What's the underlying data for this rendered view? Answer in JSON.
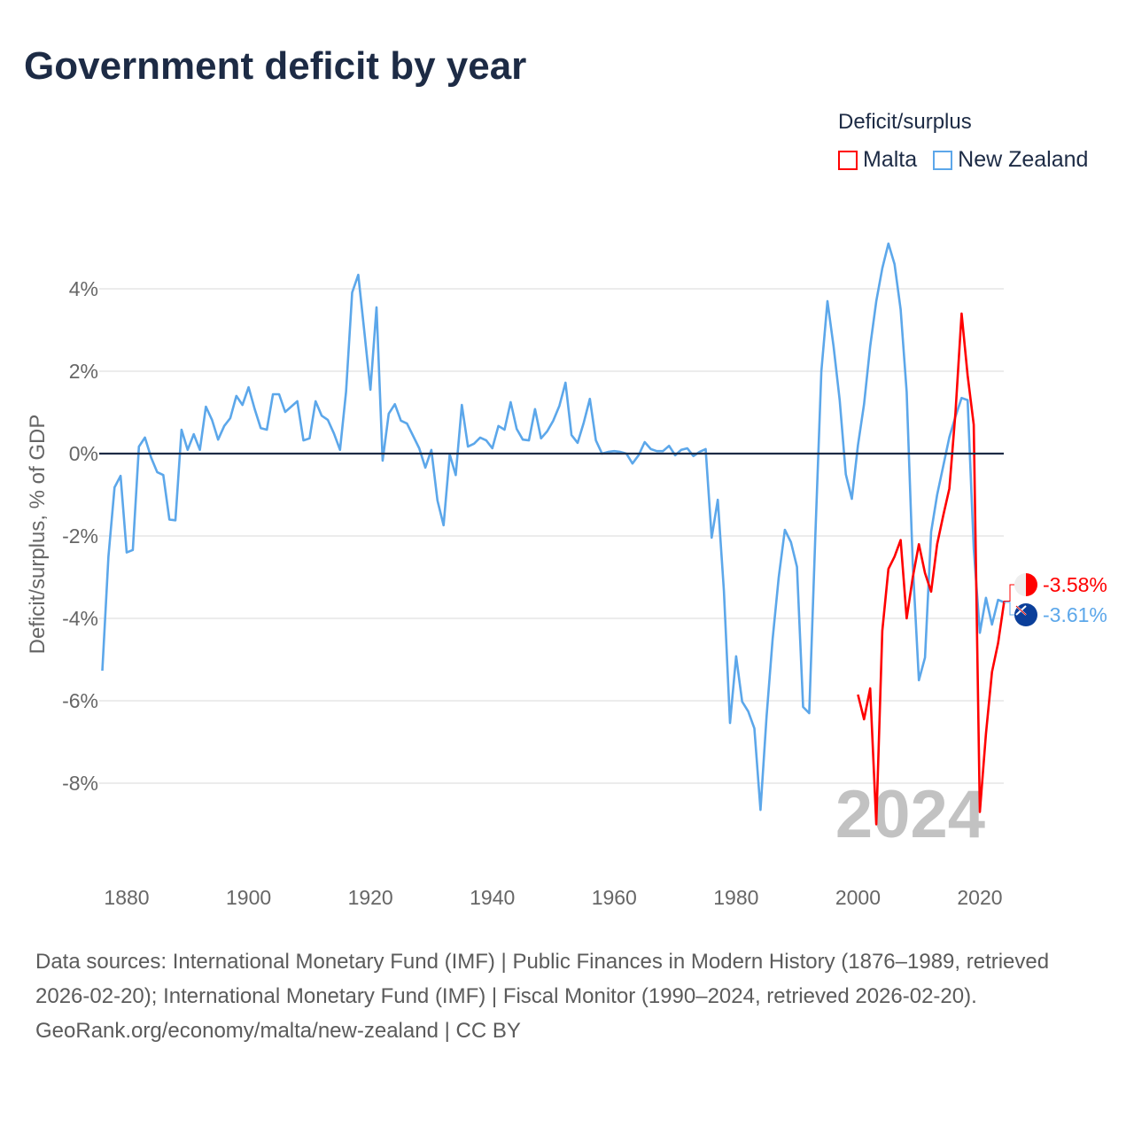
{
  "title": "Government deficit by year",
  "legend_title": "Deficit/surplus",
  "sources": "Data sources: International Monetary Fund (IMF) | Public Finances in Modern History (1876–1989, retrieved 2026-02-20); International Monetary Fund (IMF) | Fiscal Monitor (1990–2024, retrieved 2026-02-20).",
  "credit": "GeoRank.org/economy/malta/new-zealand | CC BY",
  "chart_data": {
    "type": "line",
    "title": "Government deficit by year",
    "xlabel": "",
    "ylabel": "Deficit/surplus, % of GDP",
    "xlim": [
      1876,
      2024
    ],
    "ylim": [
      -10,
      5.5
    ],
    "x_ticks": [
      1880,
      1900,
      1920,
      1940,
      1960,
      1980,
      2000,
      2020
    ],
    "y_ticks": [
      4,
      2,
      0,
      -2,
      -4,
      -6,
      -8
    ],
    "y_tick_labels": [
      "4%",
      "2%",
      "0%",
      "-2%",
      "-4%",
      "-6%",
      "-8%"
    ],
    "x_tick_labels": [
      "1880",
      "1900",
      "1920",
      "1940",
      "1960",
      "1980",
      "2000",
      "2020"
    ],
    "grid": true,
    "legend_placement": "top-right",
    "year_watermark": "2024",
    "series": [
      {
        "name": "Malta",
        "color": "#ff0000",
        "end_label": "-3.58%",
        "start_year": 2000,
        "values": [
          -5.85,
          -6.45,
          -5.7,
          -9.0,
          -4.3,
          -2.8,
          -2.5,
          -2.1,
          -4.0,
          -3.0,
          -2.2,
          -2.9,
          -3.35,
          -2.2,
          -1.5,
          -0.85,
          1.0,
          3.4,
          1.9,
          0.7,
          -8.7,
          -6.8,
          -5.3,
          -4.6,
          -3.58
        ]
      },
      {
        "name": "New Zealand",
        "color": "#5ca7ea",
        "end_label": "-3.61%",
        "start_year": 1876,
        "values": [
          -5.27,
          -2.5,
          -0.82,
          -0.54,
          -2.4,
          -2.34,
          0.17,
          0.39,
          -0.09,
          -0.45,
          -0.52,
          -1.6,
          -1.62,
          0.58,
          0.09,
          0.47,
          0.09,
          1.14,
          0.82,
          0.34,
          0.67,
          0.86,
          1.4,
          1.18,
          1.61,
          1.08,
          0.62,
          0.58,
          1.44,
          1.44,
          1.01,
          1.14,
          1.27,
          0.32,
          0.37,
          1.27,
          0.92,
          0.82,
          0.49,
          0.09,
          1.5,
          3.91,
          4.34,
          2.95,
          1.55,
          3.55,
          -0.17,
          0.97,
          1.2,
          0.8,
          0.73,
          0.43,
          0.13,
          -0.34,
          0.09,
          -1.14,
          -1.74,
          -0.02,
          -0.52,
          1.18,
          0.17,
          0.24,
          0.39,
          0.32,
          0.13,
          0.67,
          0.58,
          1.25,
          0.6,
          0.34,
          0.32,
          1.08,
          0.37,
          0.54,
          0.8,
          1.16,
          1.72,
          0.45,
          0.26,
          0.75,
          1.33,
          0.32,
          0.0,
          0.04,
          0.06,
          0.04,
          0.0,
          -0.24,
          -0.04,
          0.28,
          0.11,
          0.06,
          0.06,
          0.19,
          -0.04,
          0.09,
          0.13,
          -0.06,
          0.04,
          0.11,
          -2.04,
          -1.12,
          -3.33,
          -6.54,
          -4.92,
          -6.02,
          -6.26,
          -6.67,
          -8.65,
          -6.4,
          -4.5,
          -3.0,
          -1.85,
          -2.15,
          -2.75,
          -6.15,
          -6.3,
          -2.0,
          2.0,
          3.7,
          2.6,
          1.3,
          -0.5,
          -1.1,
          0.2,
          1.2,
          2.6,
          3.7,
          4.5,
          5.1,
          4.6,
          3.5,
          1.5,
          -2.7,
          -5.5,
          -4.95,
          -1.9,
          -1.0,
          -0.3,
          0.4,
          0.9,
          1.35,
          1.3,
          -2.3,
          -4.35,
          -3.5,
          -4.15,
          -3.55,
          -3.61
        ]
      }
    ]
  }
}
